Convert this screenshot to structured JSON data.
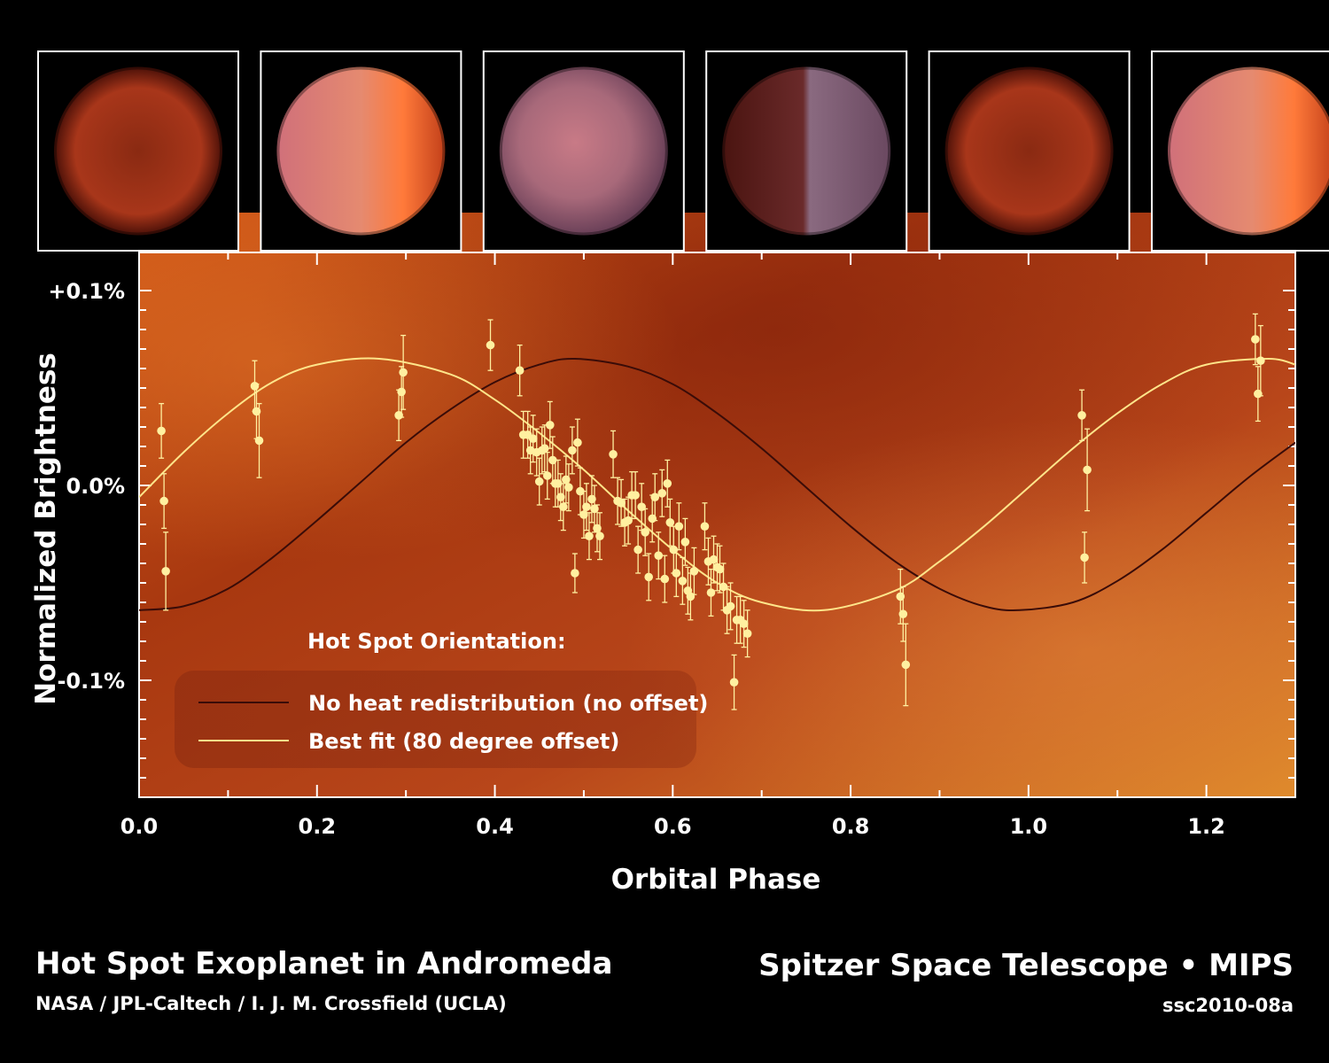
{
  "figure": {
    "title": "Hot Spot Exoplanet in Andromeda",
    "credit": "NASA / JPL-Caltech / I. J. M. Crossfield (UCLA)",
    "mission": "Spitzer Space Telescope • MIPS",
    "image_id": "ssc2010-08a"
  },
  "colors": {
    "background": "#000000",
    "plot_orange": "#c24a14",
    "best_fit_line": "#ffe58a",
    "no_offset_line": "#3a0c08",
    "data_points": "#fff0a0"
  },
  "planet_views": [
    {
      "name": "planet-view-1",
      "lit_side": "dark"
    },
    {
      "name": "planet-view-2",
      "lit_side": "right"
    },
    {
      "name": "planet-view-3",
      "lit_side": "full"
    },
    {
      "name": "planet-view-4",
      "lit_side": "left"
    },
    {
      "name": "planet-view-5",
      "lit_side": "dark"
    },
    {
      "name": "planet-view-6",
      "lit_side": "right"
    }
  ],
  "chart_data": {
    "type": "scatter",
    "title": "",
    "xlabel": "Orbital Phase",
    "ylabel": "Normalized Brightness",
    "xlim": [
      0.0,
      1.3
    ],
    "ylim": [
      -0.16,
      0.11
    ],
    "x_ticks": [
      {
        "value": 0.0,
        "label": "0.0"
      },
      {
        "value": 0.2,
        "label": "0.2"
      },
      {
        "value": 0.4,
        "label": "0.4"
      },
      {
        "value": 0.6,
        "label": "0.6"
      },
      {
        "value": 0.8,
        "label": "0.8"
      },
      {
        "value": 1.0,
        "label": "1.0"
      },
      {
        "value": 1.2,
        "label": "1.2"
      }
    ],
    "y_ticks": [
      {
        "value": 0.1,
        "label": "+0.1%"
      },
      {
        "value": 0.0,
        "label": "0.0%"
      },
      {
        "value": -0.1,
        "label": "-0.1%"
      }
    ],
    "grid": false,
    "legend": {
      "title": "Hot Spot Orientation:",
      "placement": "bottom-left",
      "entries": [
        {
          "label": "No heat redistribution (no offset)",
          "color": "#3a0c08"
        },
        {
          "label": "Best fit (80 degree offset)",
          "color": "#ffe58a"
        }
      ]
    },
    "series": [
      {
        "type": "line",
        "color": "#3a0c08",
        "x": [
          0.0,
          0.05,
          0.1,
          0.15,
          0.2,
          0.25,
          0.3,
          0.35,
          0.4,
          0.45,
          0.49,
          0.55,
          0.6,
          0.65,
          0.7,
          0.75,
          0.8,
          0.85,
          0.9,
          0.95,
          0.99,
          1.05,
          1.1,
          1.15,
          1.2,
          1.25,
          1.3
        ],
        "y": [
          -0.064,
          -0.062,
          -0.053,
          -0.037,
          -0.018,
          0.002,
          0.022,
          0.039,
          0.053,
          0.062,
          0.065,
          0.061,
          0.052,
          0.037,
          0.019,
          -0.001,
          -0.021,
          -0.039,
          -0.053,
          -0.062,
          -0.064,
          -0.06,
          -0.049,
          -0.033,
          -0.014,
          0.005,
          0.022
        ]
      },
      {
        "type": "line",
        "color": "#ffe58a",
        "x": [
          0.0,
          0.05,
          0.1,
          0.15,
          0.2,
          0.27,
          0.35,
          0.4,
          0.45,
          0.5,
          0.55,
          0.6,
          0.65,
          0.7,
          0.77,
          0.85,
          0.9,
          0.95,
          1.0,
          1.05,
          1.1,
          1.15,
          1.2,
          1.27,
          1.3
        ],
        "y": [
          -0.006,
          0.017,
          0.037,
          0.053,
          0.062,
          0.065,
          0.057,
          0.044,
          0.027,
          0.008,
          -0.013,
          -0.033,
          -0.05,
          -0.06,
          -0.064,
          -0.054,
          -0.039,
          -0.021,
          -0.001,
          0.019,
          0.037,
          0.052,
          0.062,
          0.065,
          0.062
        ]
      },
      {
        "type": "scatter",
        "color": "#fff0a0",
        "points": [
          [
            0.025,
            0.028,
            0.014
          ],
          [
            0.028,
            -0.008,
            0.014
          ],
          [
            0.03,
            -0.044,
            0.02
          ],
          [
            0.13,
            0.051,
            0.013
          ],
          [
            0.132,
            0.038,
            0.014
          ],
          [
            0.135,
            0.023,
            0.019
          ],
          [
            0.292,
            0.036,
            0.013
          ],
          [
            0.295,
            0.048,
            0.013
          ],
          [
            0.297,
            0.058,
            0.019
          ],
          [
            0.395,
            0.072,
            0.013
          ],
          [
            0.428,
            0.059,
            0.013
          ],
          [
            0.432,
            0.026,
            0.012
          ],
          [
            0.437,
            0.026,
            0.012
          ],
          [
            0.44,
            0.018,
            0.012
          ],
          [
            0.443,
            0.024,
            0.012
          ],
          [
            0.447,
            0.017,
            0.012
          ],
          [
            0.45,
            0.002,
            0.012
          ],
          [
            0.453,
            0.018,
            0.012
          ],
          [
            0.456,
            0.019,
            0.012
          ],
          [
            0.459,
            0.005,
            0.012
          ],
          [
            0.462,
            0.031,
            0.012
          ],
          [
            0.465,
            0.013,
            0.012
          ],
          [
            0.468,
            0.001,
            0.012
          ],
          [
            0.471,
            0.001,
            0.012
          ],
          [
            0.474,
            -0.006,
            0.012
          ],
          [
            0.477,
            -0.011,
            0.012
          ],
          [
            0.48,
            0.003,
            0.012
          ],
          [
            0.483,
            -0.001,
            0.012
          ],
          [
            0.487,
            0.018,
            0.012
          ],
          [
            0.49,
            -0.045,
            0.01
          ],
          [
            0.493,
            0.022,
            0.012
          ],
          [
            0.496,
            -0.003,
            0.012
          ],
          [
            0.5,
            -0.015,
            0.012
          ],
          [
            0.503,
            -0.011,
            0.012
          ],
          [
            0.506,
            -0.026,
            0.012
          ],
          [
            0.509,
            -0.007,
            0.012
          ],
          [
            0.512,
            -0.012,
            0.012
          ],
          [
            0.515,
            -0.022,
            0.012
          ],
          [
            0.518,
            -0.026,
            0.012
          ],
          [
            0.533,
            0.016,
            0.012
          ],
          [
            0.538,
            -0.008,
            0.012
          ],
          [
            0.542,
            -0.009,
            0.012
          ],
          [
            0.546,
            -0.019,
            0.012
          ],
          [
            0.55,
            -0.018,
            0.012
          ],
          [
            0.554,
            -0.005,
            0.012
          ],
          [
            0.558,
            -0.005,
            0.012
          ],
          [
            0.561,
            -0.033,
            0.012
          ],
          [
            0.565,
            -0.011,
            0.012
          ],
          [
            0.569,
            -0.024,
            0.012
          ],
          [
            0.573,
            -0.047,
            0.012
          ],
          [
            0.577,
            -0.017,
            0.012
          ],
          [
            0.58,
            -0.006,
            0.012
          ],
          [
            0.584,
            -0.036,
            0.012
          ],
          [
            0.588,
            -0.004,
            0.012
          ],
          [
            0.591,
            -0.048,
            0.012
          ],
          [
            0.594,
            0.001,
            0.012
          ],
          [
            0.597,
            -0.019,
            0.012
          ],
          [
            0.601,
            -0.033,
            0.012
          ],
          [
            0.604,
            -0.045,
            0.012
          ],
          [
            0.607,
            -0.021,
            0.012
          ],
          [
            0.611,
            -0.049,
            0.012
          ],
          [
            0.614,
            -0.029,
            0.012
          ],
          [
            0.617,
            -0.054,
            0.012
          ],
          [
            0.62,
            -0.057,
            0.012
          ],
          [
            0.624,
            -0.044,
            0.012
          ],
          [
            0.636,
            -0.021,
            0.012
          ],
          [
            0.64,
            -0.039,
            0.012
          ],
          [
            0.643,
            -0.055,
            0.012
          ],
          [
            0.646,
            -0.038,
            0.012
          ],
          [
            0.65,
            -0.042,
            0.012
          ],
          [
            0.653,
            -0.043,
            0.012
          ],
          [
            0.657,
            -0.052,
            0.012
          ],
          [
            0.661,
            -0.064,
            0.012
          ],
          [
            0.665,
            -0.062,
            0.012
          ],
          [
            0.669,
            -0.101,
            0.014
          ],
          [
            0.672,
            -0.069,
            0.012
          ],
          [
            0.676,
            -0.069,
            0.012
          ],
          [
            0.68,
            -0.071,
            0.012
          ],
          [
            0.684,
            -0.076,
            0.012
          ],
          [
            0.856,
            -0.057,
            0.014
          ],
          [
            0.859,
            -0.066,
            0.014
          ],
          [
            0.862,
            -0.092,
            0.021
          ],
          [
            1.06,
            0.036,
            0.013
          ],
          [
            1.063,
            -0.037,
            0.013
          ],
          [
            1.066,
            0.008,
            0.021
          ],
          [
            1.255,
            0.075,
            0.013
          ],
          [
            1.258,
            0.047,
            0.014
          ],
          [
            1.261,
            0.064,
            0.018
          ]
        ]
      }
    ]
  }
}
